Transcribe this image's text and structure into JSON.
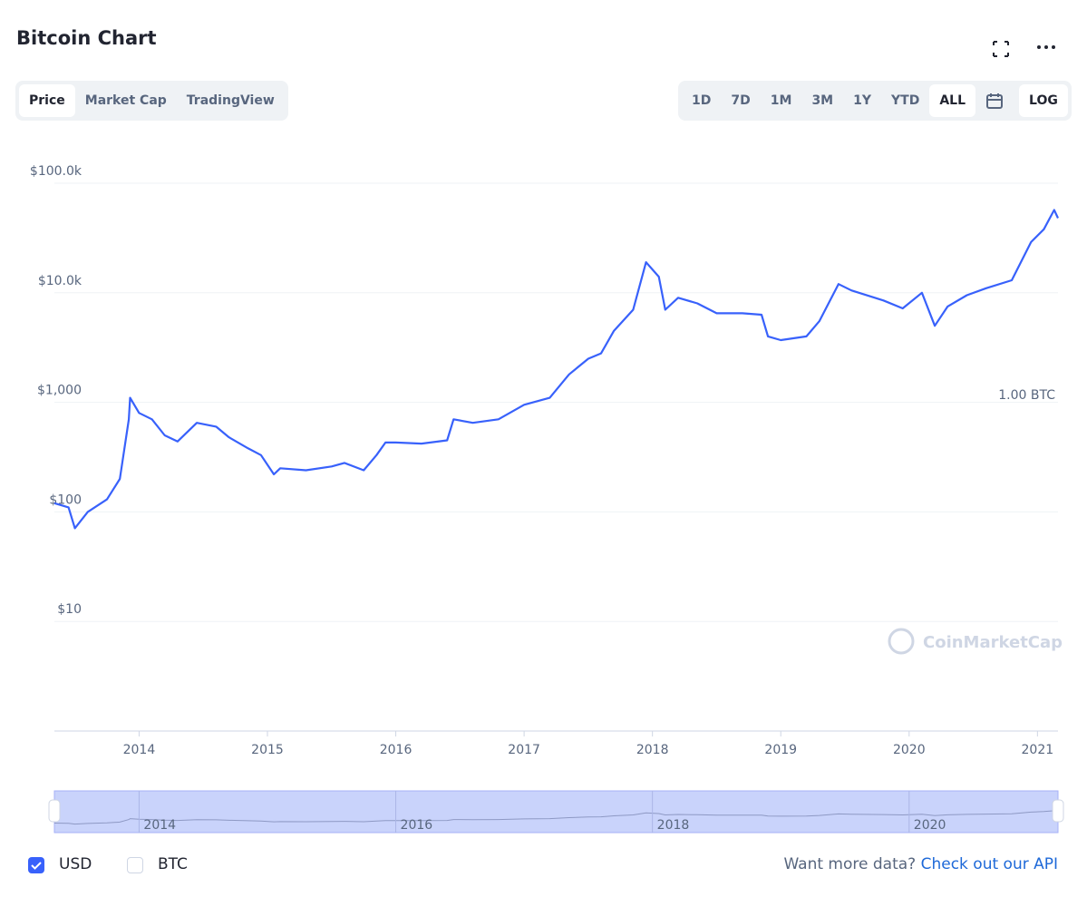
{
  "header": {
    "title": "Bitcoin Chart"
  },
  "tabs": [
    "Price",
    "Market Cap",
    "TradingView"
  ],
  "ranges": [
    "1D",
    "7D",
    "1M",
    "3M",
    "1Y",
    "YTD",
    "ALL"
  ],
  "log_button": "LOG",
  "watermark": "CoinMarketCap",
  "navigator_ticks": [
    2014,
    2016,
    2018,
    2020
  ],
  "footer": {
    "currencies": [
      "USD",
      "BTC"
    ],
    "prompt": "Want more data?",
    "link": "Check out our API"
  },
  "chart_data": {
    "type": "line",
    "log_scale": true,
    "grid": true,
    "color": "#3861fb",
    "annotation": "1.00 BTC",
    "x": [
      2013.34,
      2013.45,
      2013.5,
      2013.6,
      2013.75,
      2013.85,
      2013.92,
      2013.93,
      2014.0,
      2014.1,
      2014.2,
      2014.3,
      2014.45,
      2014.6,
      2014.7,
      2014.85,
      2014.95,
      2015.05,
      2015.1,
      2015.3,
      2015.5,
      2015.6,
      2015.75,
      2015.85,
      2015.92,
      2016.0,
      2016.2,
      2016.4,
      2016.45,
      2016.6,
      2016.8,
      2017.0,
      2017.2,
      2017.35,
      2017.5,
      2017.6,
      2017.7,
      2017.85,
      2017.95,
      2018.05,
      2018.1,
      2018.2,
      2018.35,
      2018.5,
      2018.7,
      2018.85,
      2018.9,
      2019.0,
      2019.2,
      2019.3,
      2019.45,
      2019.55,
      2019.8,
      2019.95,
      2020.1,
      2020.2,
      2020.3,
      2020.45,
      2020.6,
      2020.8,
      2020.95,
      2021.05,
      2021.13,
      2021.16
    ],
    "values": [
      120,
      110,
      71,
      100,
      130,
      200,
      700,
      1100,
      800,
      700,
      500,
      440,
      650,
      600,
      480,
      380,
      330,
      220,
      250,
      240,
      260,
      280,
      240,
      330,
      430,
      430,
      420,
      450,
      700,
      650,
      700,
      950,
      1100,
      1800,
      2500,
      2800,
      4500,
      7000,
      19000,
      14000,
      7000,
      9000,
      8000,
      6500,
      6500,
      6300,
      4000,
      3700,
      4000,
      5500,
      12000,
      10500,
      8500,
      7200,
      10000,
      5000,
      7500,
      9500,
      11000,
      13000,
      29000,
      38000,
      57000,
      48000
    ],
    "xlim": [
      2013.34,
      2021.16
    ],
    "ylim": [
      1,
      100000
    ],
    "xticks": [
      2014,
      2015,
      2016,
      2017,
      2018,
      2019,
      2020,
      2021
    ],
    "yticks": [
      {
        "value": 100000,
        "label": "$100.0k"
      },
      {
        "value": 10000,
        "label": "$10.0k"
      },
      {
        "value": 1000,
        "label": "$1,000"
      },
      {
        "value": 100,
        "label": "$100"
      },
      {
        "value": 10,
        "label": "$10"
      }
    ]
  }
}
